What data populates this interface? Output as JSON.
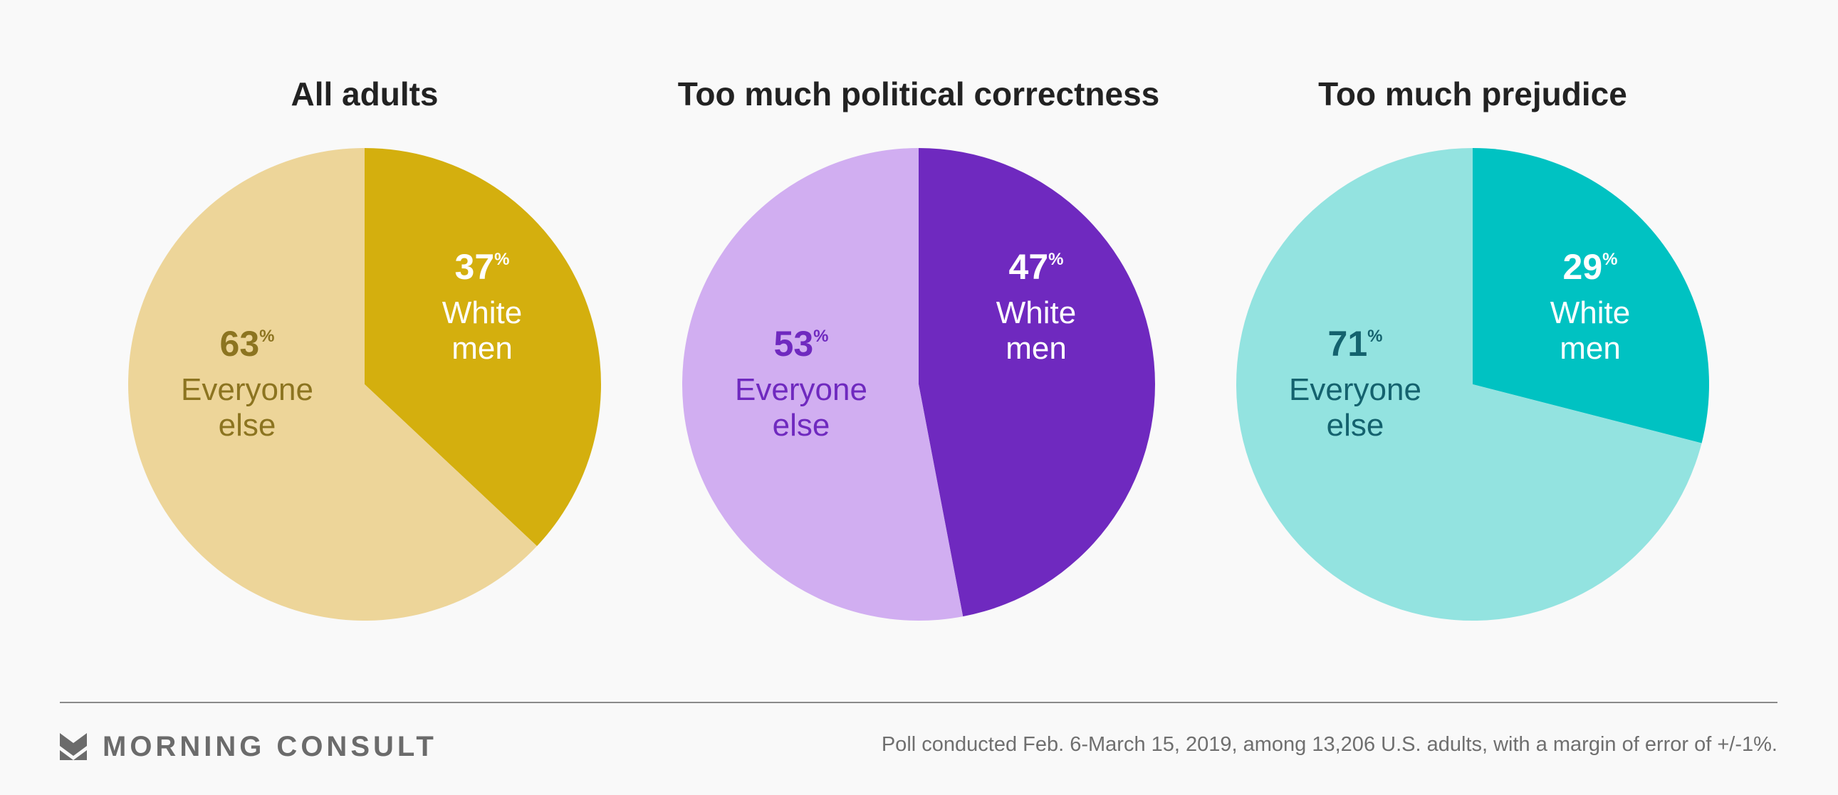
{
  "chart_data": [
    {
      "type": "pie",
      "title": "All adults",
      "slices": [
        {
          "label_lines": [
            "White",
            "men"
          ],
          "value": 37,
          "color": "#d4af0e",
          "label_color": "#ffffff"
        },
        {
          "label_lines": [
            "Everyone",
            "else"
          ],
          "value": 63,
          "color": "#edd599",
          "label_color": "#8c7420"
        }
      ]
    },
    {
      "type": "pie",
      "title": "Too much political correctness",
      "slices": [
        {
          "label_lines": [
            "White",
            "men"
          ],
          "value": 47,
          "color": "#6f29bf",
          "label_color": "#ffffff"
        },
        {
          "label_lines": [
            "Everyone",
            "else"
          ],
          "value": 53,
          "color": "#d1aef1",
          "label_color": "#6f29bf"
        }
      ]
    },
    {
      "type": "pie",
      "title": "Too much prejudice",
      "slices": [
        {
          "label_lines": [
            "White",
            "men"
          ],
          "value": 29,
          "color": "#00c2c2",
          "label_color": "#ffffff"
        },
        {
          "label_lines": [
            "Everyone",
            "else"
          ],
          "value": 71,
          "color": "#93e3e0",
          "label_color": "#14626e"
        }
      ]
    }
  ],
  "percent_symbol": "%",
  "footer": {
    "logo_text": "MORNING CONSULT",
    "logo_color": "#6b6b6b",
    "note": "Poll conducted Feb. 6-March 15, 2019, among 13,206 U.S. adults, with a margin of error of +/-1%."
  }
}
